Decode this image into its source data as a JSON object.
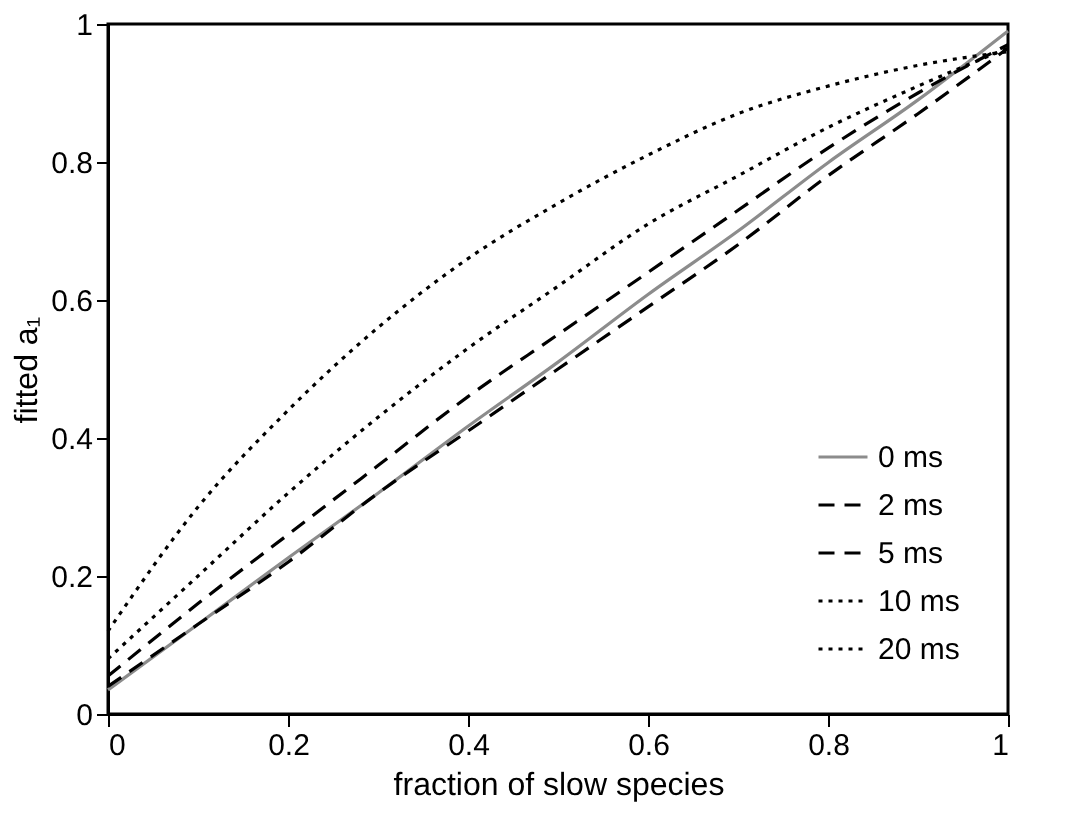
{
  "chart_data": {
    "type": "line",
    "xlabel": "fraction of slow species",
    "ylabel": "fitted a₁",
    "x": [
      0,
      0.1,
      0.2,
      0.3,
      0.4,
      0.5,
      0.6,
      0.7,
      0.8,
      0.9,
      1
    ],
    "series": [
      {
        "name": "0 ms",
        "color": "#8c8c8c",
        "line_style": "solid",
        "values": [
          0.035,
          0.13,
          0.226,
          0.32,
          0.417,
          0.51,
          0.608,
          0.7,
          0.799,
          0.89,
          0.99
        ]
      },
      {
        "name": "2 ms",
        "color": "#000000",
        "line_style": "dashed",
        "values": [
          0.04,
          0.13,
          0.22,
          0.32,
          0.41,
          0.5,
          0.59,
          0.68,
          0.78,
          0.87,
          0.965
        ]
      },
      {
        "name": "5 ms",
        "color": "#000000",
        "line_style": "dashed",
        "values": [
          0.055,
          0.16,
          0.26,
          0.36,
          0.46,
          0.55,
          0.64,
          0.73,
          0.82,
          0.9,
          0.97
        ]
      },
      {
        "name": "10 ms",
        "color": "#000000",
        "line_style": "dotted",
        "values": [
          0.08,
          0.2,
          0.32,
          0.43,
          0.53,
          0.62,
          0.71,
          0.78,
          0.85,
          0.91,
          0.965
        ]
      },
      {
        "name": "20 ms",
        "color": "#000000",
        "line_style": "dotted",
        "values": [
          0.12,
          0.3,
          0.44,
          0.56,
          0.66,
          0.74,
          0.81,
          0.87,
          0.91,
          0.94,
          0.96
        ]
      }
    ],
    "xlim": [
      0,
      1
    ],
    "xticks": [
      0,
      0.2,
      0.4,
      0.6,
      0.8,
      1
    ],
    "ylim": [
      0,
      1
    ],
    "yticks": [
      0,
      0.2,
      0.4,
      0.6,
      0.8,
      1
    ],
    "grid": false,
    "legend": "bottom right"
  }
}
